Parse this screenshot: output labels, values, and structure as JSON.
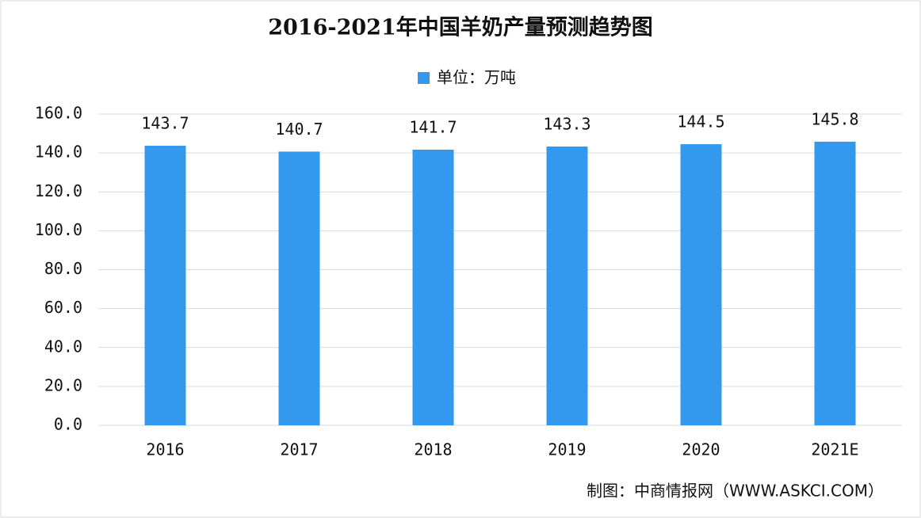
{
  "chart_data": {
    "type": "bar",
    "title": "2016-2021年中国羊奶产量预测趋势图",
    "categories": [
      "2016",
      "2017",
      "2018",
      "2019",
      "2020",
      "2021E"
    ],
    "series": [
      {
        "name": "单位：万吨",
        "color": "#3399ee",
        "values": [
          143.7,
          140.7,
          141.7,
          143.3,
          144.5,
          145.8
        ]
      }
    ],
    "ylim": [
      0,
      160
    ],
    "yticks": [
      {
        "value": 0,
        "label": "0.0"
      },
      {
        "value": 20,
        "label": "20.0"
      },
      {
        "value": 40,
        "label": "40.0"
      },
      {
        "value": 60,
        "label": "60.0"
      },
      {
        "value": 80,
        "label": "80.0"
      },
      {
        "value": 100,
        "label": "100.0"
      },
      {
        "value": 120,
        "label": "120.0"
      },
      {
        "value": 140,
        "label": "140.0"
      },
      {
        "value": 160,
        "label": "160.0"
      }
    ],
    "grid": true,
    "legend": "top",
    "source": "制图：中商情报网（WWW.ASKCI.COM）"
  }
}
